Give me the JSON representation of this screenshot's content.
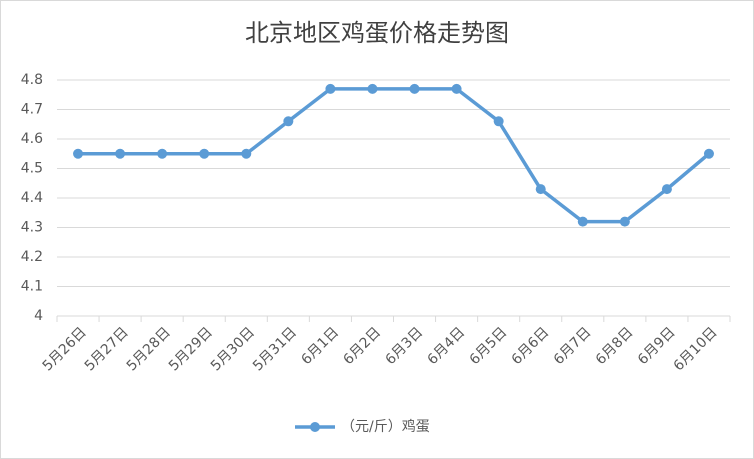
{
  "chart_data": {
    "type": "line",
    "title": "北京地区鸡蛋价格走势图",
    "categories": [
      "5月26日",
      "5月27日",
      "5月28日",
      "5月29日",
      "5月30日",
      "5月31日",
      "6月1日",
      "6月2日",
      "6月3日",
      "6月4日",
      "6月5日",
      "6月6日",
      "6月7日",
      "6月8日",
      "6月9日",
      "6月10日"
    ],
    "series": [
      {
        "name": "（元/斤）鸡蛋",
        "color": "#5b9bd5",
        "values": [
          4.55,
          4.55,
          4.55,
          4.55,
          4.55,
          4.66,
          4.77,
          4.77,
          4.77,
          4.77,
          4.66,
          4.43,
          4.32,
          4.32,
          4.43,
          4.55
        ]
      }
    ],
    "ylim": [
      4,
      4.8
    ],
    "yticks": [
      4,
      4.1,
      4.2,
      4.3,
      4.4,
      4.5,
      4.6,
      4.7,
      4.8
    ],
    "grid": true,
    "legend": "bottom"
  }
}
